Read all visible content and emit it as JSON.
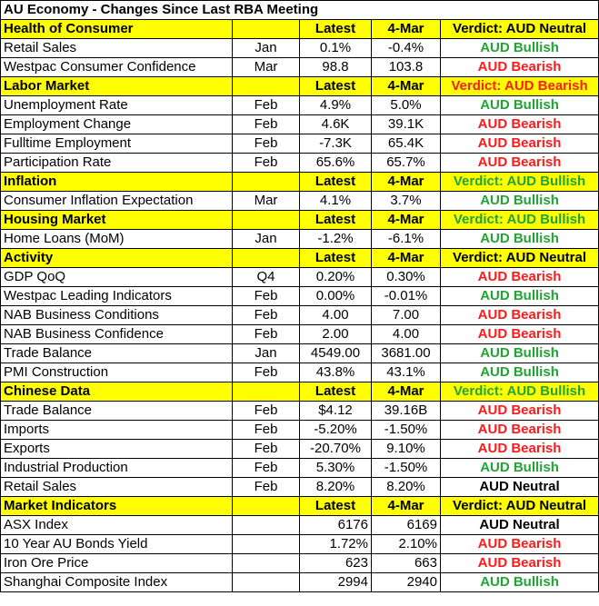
{
  "title": "AU Economy - Changes Since Last RBA Meeting",
  "columns": {
    "latest": "Latest",
    "prev": "4-Mar"
  },
  "colors": {
    "section_bg": "#ffff00",
    "bullish": "#22a335",
    "bearish": "#ff1a1a",
    "neutral": "#000000"
  },
  "sections": [
    {
      "name": "Health of Consumer",
      "verdict": "Verdict: AUD Neutral",
      "rows": [
        {
          "indicator": "Retail Sales",
          "month": "Jan",
          "latest": "0.1%",
          "prev": "-0.4%",
          "signal": "AUD Bullish"
        },
        {
          "indicator": "Westpac Consumer Confidence",
          "month": "Mar",
          "latest": "98.8",
          "prev": "103.8",
          "signal": "AUD Bearish"
        }
      ]
    },
    {
      "name": "Labor Market",
      "verdict": "Verdict: AUD Bearish",
      "rows": [
        {
          "indicator": "Unemployment Rate",
          "month": "Feb",
          "latest": "4.9%",
          "prev": "5.0%",
          "signal": "AUD Bullish"
        },
        {
          "indicator": "Employment Change",
          "month": "Feb",
          "latest": "4.6K",
          "prev": "39.1K",
          "signal": "AUD Bearish"
        },
        {
          "indicator": "Fulltime Employment",
          "month": "Feb",
          "latest": "-7.3K",
          "prev": "65.4K",
          "signal": "AUD Bearish"
        },
        {
          "indicator": "Participation Rate",
          "month": "Feb",
          "latest": "65.6%",
          "prev": "65.7%",
          "signal": "AUD Bearish"
        }
      ]
    },
    {
      "name": "Inflation",
      "verdict": "Verdict: AUD Bullish",
      "rows": [
        {
          "indicator": "Consumer Inflation Expectation",
          "month": "Mar",
          "latest": "4.1%",
          "prev": "3.7%",
          "signal": "AUD Bullish"
        }
      ]
    },
    {
      "name": "Housing Market",
      "verdict": "Verdict: AUD Bullish",
      "rows": [
        {
          "indicator": "Home Loans (MoM)",
          "month": "Jan",
          "latest": "-1.2%",
          "prev": "-6.1%",
          "signal": "AUD Bullish"
        }
      ]
    },
    {
      "name": "Activity",
      "verdict": "Verdict: AUD Neutral",
      "rows": [
        {
          "indicator": "GDP QoQ",
          "month": "Q4",
          "latest": "0.20%",
          "prev": "0.30%",
          "signal": "AUD Bearish"
        },
        {
          "indicator": "Westpac Leading Indicators",
          "month": "Feb",
          "latest": "0.00%",
          "prev": "-0.01%",
          "signal": "AUD Bullish"
        },
        {
          "indicator": "NAB Business Conditions",
          "month": "Feb",
          "latest": "4.00",
          "prev": "7.00",
          "signal": "AUD Bearish"
        },
        {
          "indicator": "NAB Business Confidence",
          "month": "Feb",
          "latest": "2.00",
          "prev": "4.00",
          "signal": "AUD Bearish"
        },
        {
          "indicator": "Trade Balance",
          "month": "Jan",
          "latest": "4549.00",
          "prev": "3681.00",
          "signal": "AUD Bullish"
        },
        {
          "indicator": "PMI Construction",
          "month": "Feb",
          "latest": "43.8%",
          "prev": "43.1%",
          "signal": "AUD Bullish"
        }
      ]
    },
    {
      "name": "Chinese Data",
      "verdict": "Verdict: AUD Bullish",
      "rows": [
        {
          "indicator": "Trade Balance",
          "month": "Feb",
          "latest": "$4.12",
          "prev": "39.16B",
          "signal": "AUD Bearish"
        },
        {
          "indicator": "Imports",
          "month": "Feb",
          "latest": "-5.20%",
          "prev": "-1.50%",
          "signal": "AUD Bearish"
        },
        {
          "indicator": "Exports",
          "month": "Feb",
          "latest": "-20.70%",
          "prev": "9.10%",
          "signal": "AUD Bearish"
        },
        {
          "indicator": "Industrial Production",
          "month": "Feb",
          "latest": "5.30%",
          "prev": "-1.50%",
          "signal": "AUD Bullish"
        },
        {
          "indicator": "Retail Sales",
          "month": "Feb",
          "latest": "8.20%",
          "prev": "8.20%",
          "signal": "AUD Neutral"
        }
      ]
    },
    {
      "name": "Market Indicators",
      "verdict": "Verdict: AUD Neutral",
      "rows": [
        {
          "indicator": "ASX Index",
          "month": "",
          "latest": "6176",
          "prev": "6169",
          "signal": "AUD Neutral"
        },
        {
          "indicator": "10 Year AU Bonds Yield",
          "month": "",
          "latest": "1.72%",
          "prev": "2.10%",
          "signal": "AUD Bearish"
        },
        {
          "indicator": "Iron Ore Price",
          "month": "",
          "latest": "623",
          "prev": "663",
          "signal": "AUD Bearish"
        },
        {
          "indicator": "Shanghai Composite Index",
          "month": "",
          "latest": "2994",
          "prev": "2940",
          "signal": "AUD Bullish"
        }
      ]
    }
  ]
}
